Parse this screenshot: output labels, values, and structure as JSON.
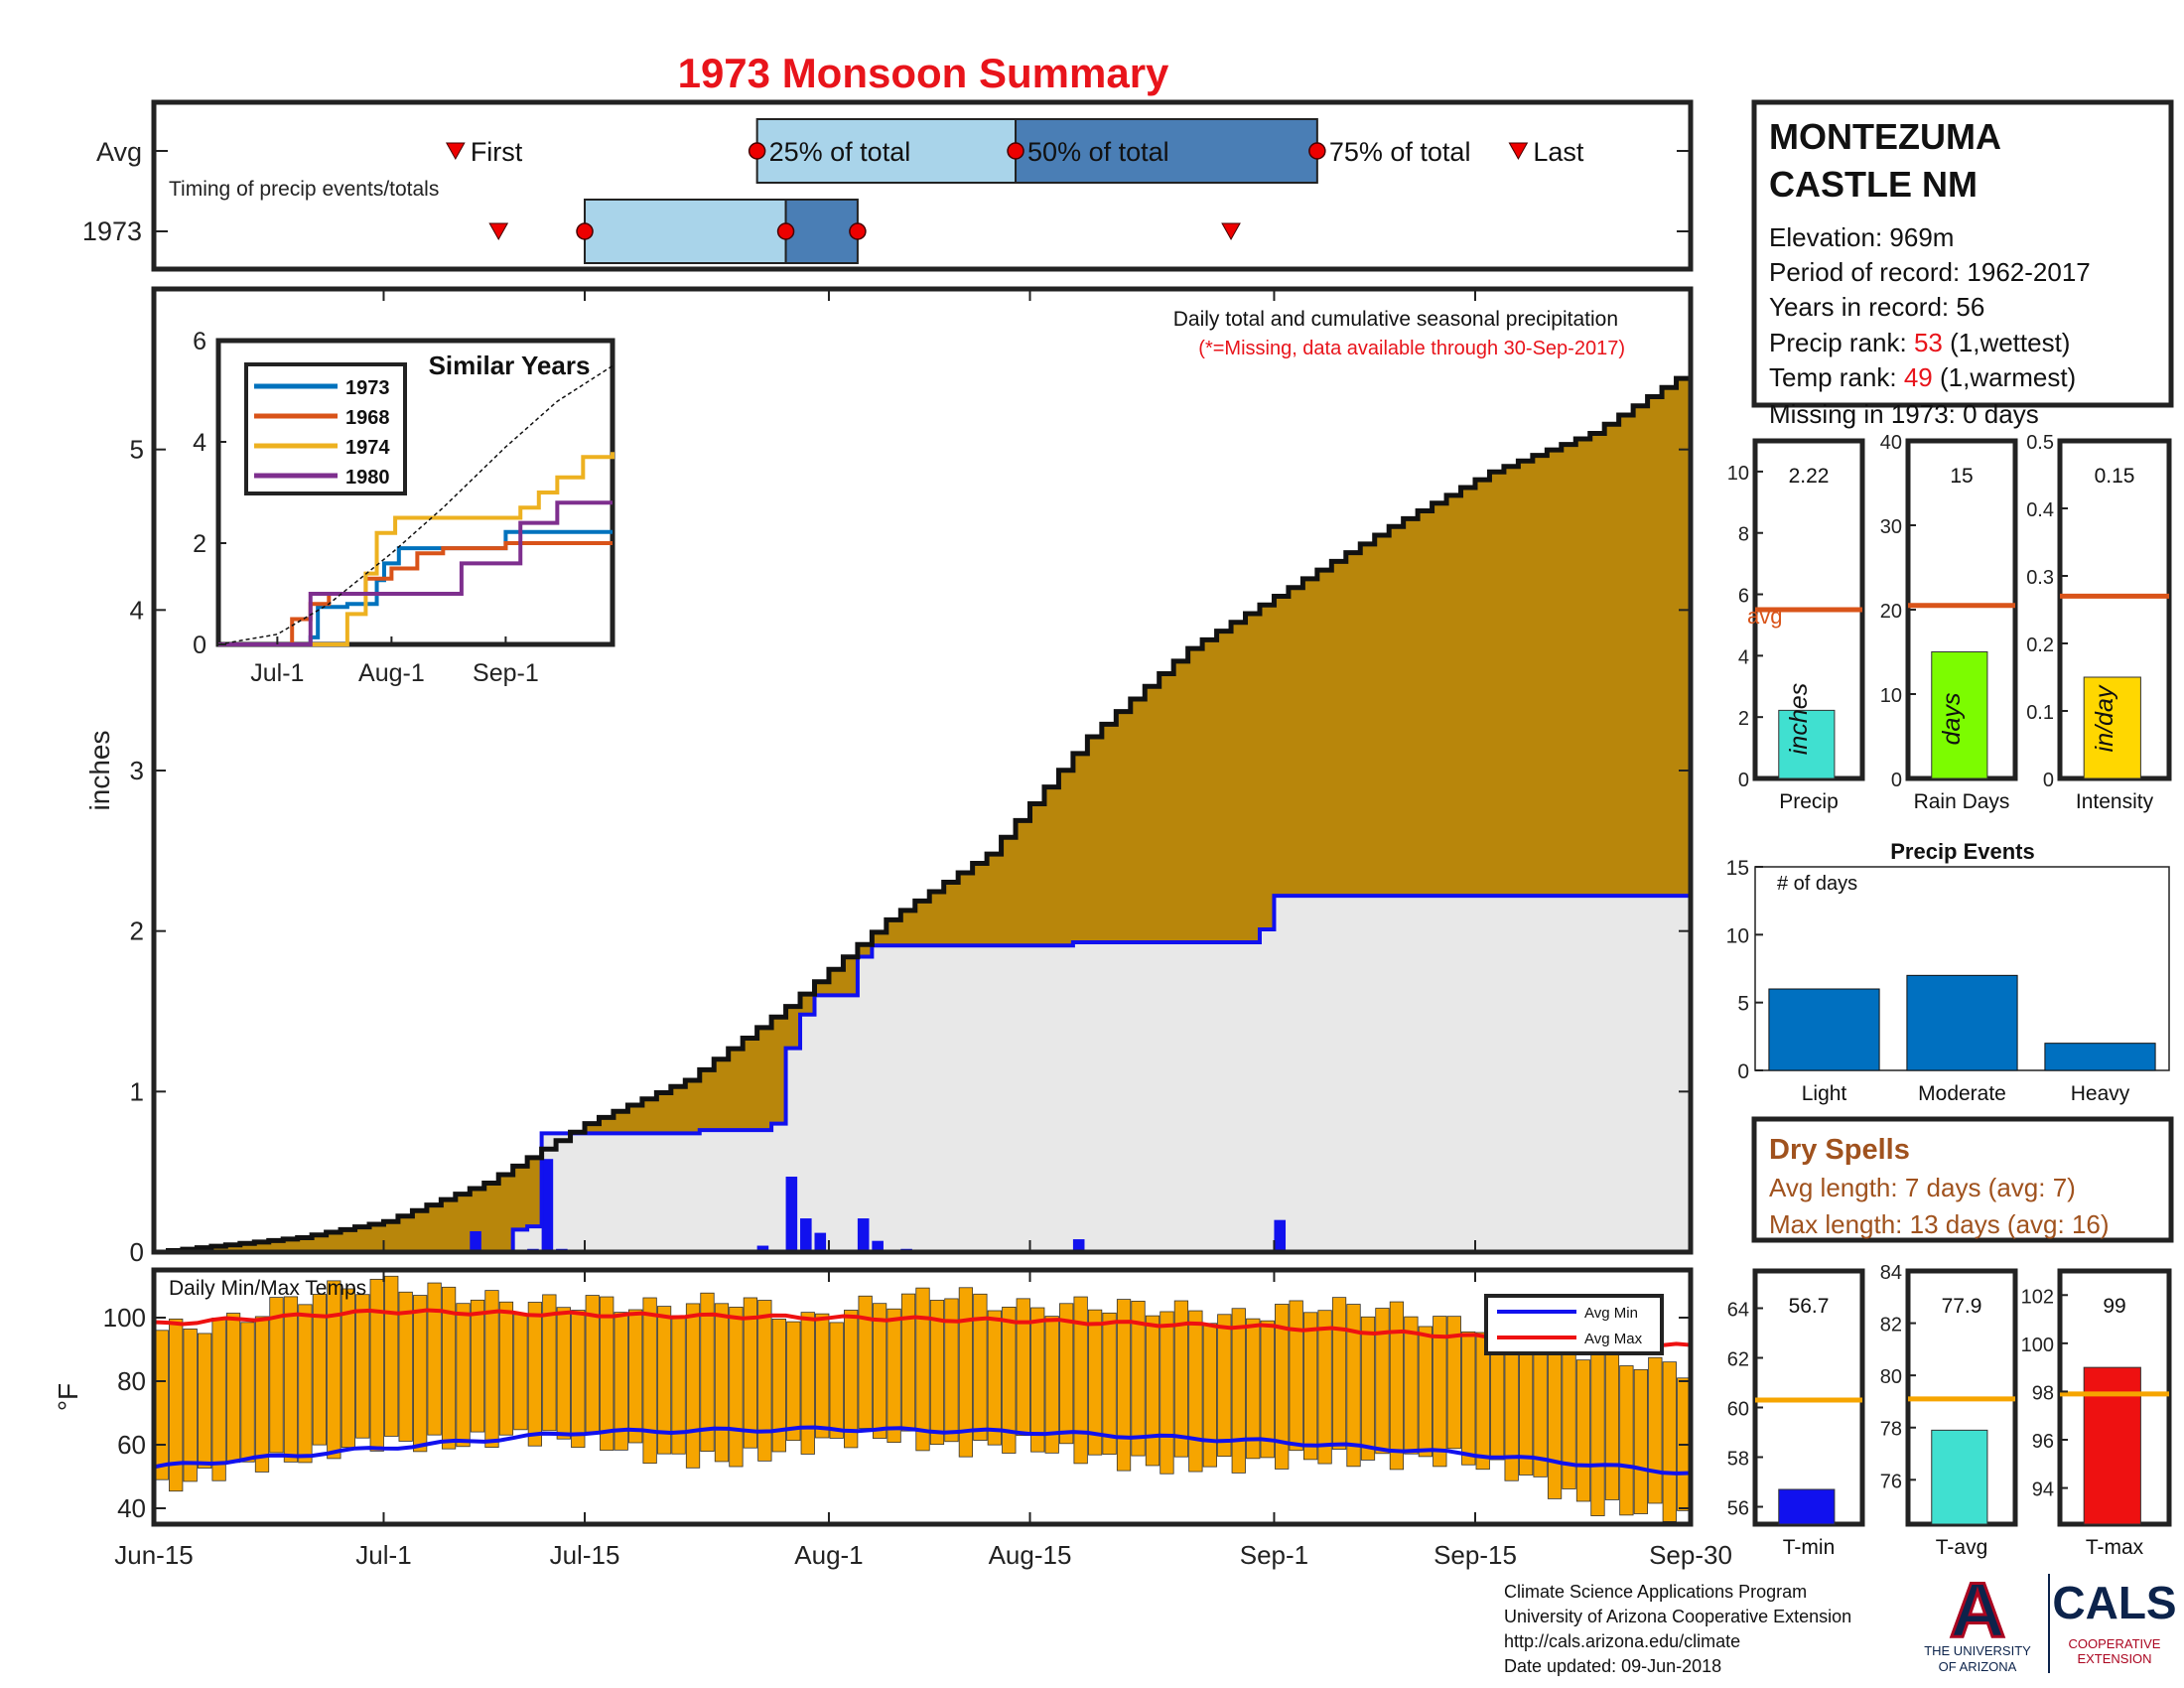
{
  "title": "1973 Monsoon Summary",
  "station": {
    "name_line1": "MONTEZUMA",
    "name_line2": "CASTLE NM",
    "elevation": "Elevation: 969m",
    "period": "Period of record: 1962-2017",
    "years": "Years in record: 56",
    "precip_rank_label": "Precip rank: ",
    "precip_rank_value": "53",
    "precip_rank_note": " (1,wettest)",
    "temp_rank_label": "Temp rank: ",
    "temp_rank_value": "49",
    "temp_rank_note": " (1,warmest)",
    "missing": "Missing in 1973: 0 days"
  },
  "timing": {
    "avg_label": "Avg",
    "year_label": "1973",
    "subtitle": "Timing of precip events/totals",
    "first_label": "First",
    "last_label": "Last",
    "q25_label": "25% of total",
    "q50_label": "50% of total",
    "q75_label": "75% of total",
    "avg": {
      "first": "2017-07-06",
      "q25": "2017-07-27",
      "q50": "2017-08-14",
      "q75": "2017-09-04",
      "last": "2017-09-18"
    },
    "year": {
      "first": "2017-07-09",
      "q25": "2017-07-15",
      "q50": "2017-07-29",
      "q75": "2017-08-03",
      "last": "2017-08-29"
    }
  },
  "colors": {
    "title": "#e8141b",
    "cumulative_fill": "#b8860b",
    "year_line": "#1111ee",
    "gray_fill": "#e8e8e8",
    "q_light": "#a9d4ea",
    "q_dark": "#4a7eb5",
    "avg_line": "#d9541a",
    "temp_bar": "#f6a500",
    "event_bar": "#0070c0"
  },
  "chart_data": [
    {
      "type": "area",
      "title": "Daily total and cumulative seasonal precipitation",
      "note": "(*=Missing, data available through 30-Sep-2017)",
      "ylabel": "inches",
      "ylim": [
        0,
        6
      ],
      "yticks": [
        0,
        1,
        2,
        3,
        4,
        5
      ],
      "xlim": [
        "2017-06-15",
        "2017-09-30"
      ],
      "xticks": [
        "Jun-15",
        "Jul-1",
        "Jul-15",
        "Aug-1",
        "Aug-15",
        "Sep-1",
        "Sep-15",
        "Sep-30"
      ],
      "series": [
        {
          "name": "Avg cumulative",
          "x": [
            "2017-06-15",
            "2017-06-25",
            "2017-07-01",
            "2017-07-08",
            "2017-07-15",
            "2017-07-22",
            "2017-07-29",
            "2017-08-05",
            "2017-08-12",
            "2017-08-19",
            "2017-08-26",
            "2017-09-02",
            "2017-09-09",
            "2017-09-16",
            "2017-09-23",
            "2017-09-30"
          ],
          "values": [
            0,
            0.09,
            0.19,
            0.43,
            0.8,
            1.07,
            1.53,
            2.07,
            2.48,
            3.21,
            3.76,
            4.14,
            4.52,
            4.86,
            5.1,
            5.5
          ]
        },
        {
          "name": "1973 cumulative",
          "x": [
            "2017-06-15",
            "2017-07-10",
            "2017-07-11",
            "2017-07-12",
            "2017-07-23",
            "2017-07-28",
            "2017-07-29",
            "2017-07-30",
            "2017-07-31",
            "2017-08-03",
            "2017-08-04",
            "2017-08-18",
            "2017-08-31",
            "2017-09-01",
            "2017-09-30"
          ],
          "values": [
            0,
            0.14,
            0.16,
            0.74,
            0.76,
            0.8,
            1.27,
            1.48,
            1.6,
            1.84,
            1.91,
            1.93,
            2.01,
            2.22,
            2.22
          ]
        },
        {
          "name": "1973 daily",
          "x": [
            "2017-07-07",
            "2017-07-11",
            "2017-07-12",
            "2017-07-13",
            "2017-07-27",
            "2017-07-29",
            "2017-07-30",
            "2017-07-31",
            "2017-08-03",
            "2017-08-04",
            "2017-08-06",
            "2017-08-18",
            "2017-09-01"
          ],
          "values": [
            0.13,
            0.02,
            0.58,
            0.02,
            0.04,
            0.47,
            0.21,
            0.12,
            0.21,
            0.07,
            0.02,
            0.08,
            0.2
          ]
        }
      ]
    },
    {
      "type": "line",
      "title": "Similar Years",
      "ylim": [
        0,
        6
      ],
      "yticks": [
        0,
        2,
        4,
        6
      ],
      "xticks": [
        "Jul-1",
        "Aug-1",
        "Sep-1"
      ],
      "xlim": [
        "2017-06-15",
        "2017-09-30"
      ],
      "series": [
        {
          "name": "1973",
          "color": "#0072bd",
          "x": [
            "2017-06-15",
            "2017-07-07",
            "2017-07-10",
            "2017-07-12",
            "2017-07-20",
            "2017-07-28",
            "2017-07-30",
            "2017-08-03",
            "2017-09-01",
            "2017-09-30"
          ],
          "values": [
            0,
            0,
            0.14,
            0.74,
            0.8,
            1.27,
            1.6,
            1.9,
            2.22,
            2.22
          ]
        },
        {
          "name": "1968",
          "color": "#d95319",
          "x": [
            "2017-06-15",
            "2017-07-01",
            "2017-07-05",
            "2017-07-10",
            "2017-07-15",
            "2017-07-25",
            "2017-08-01",
            "2017-08-08",
            "2017-08-15",
            "2017-09-01",
            "2017-09-30"
          ],
          "values": [
            0,
            0,
            0.5,
            0.8,
            1.0,
            1.3,
            1.5,
            1.8,
            1.9,
            2.0,
            2.0
          ]
        },
        {
          "name": "1974",
          "color": "#edb120",
          "x": [
            "2017-06-15",
            "2017-07-15",
            "2017-07-20",
            "2017-07-25",
            "2017-07-28",
            "2017-08-02",
            "2017-08-10",
            "2017-09-05",
            "2017-09-10",
            "2017-09-15",
            "2017-09-22",
            "2017-09-30"
          ],
          "values": [
            0,
            0,
            0.6,
            1.4,
            2.2,
            2.5,
            2.5,
            2.7,
            3.0,
            3.3,
            3.7,
            3.8
          ]
        },
        {
          "name": "1980",
          "color": "#7e2f8e",
          "x": [
            "2017-06-15",
            "2017-07-03",
            "2017-07-10",
            "2017-07-15",
            "2017-08-01",
            "2017-08-20",
            "2017-09-05",
            "2017-09-15",
            "2017-09-30"
          ],
          "values": [
            0,
            0,
            1.0,
            1.0,
            1.0,
            1.6,
            2.4,
            2.8,
            2.8
          ]
        },
        {
          "name": "Avg",
          "x": [
            "2017-06-15",
            "2017-07-01",
            "2017-07-15",
            "2017-08-01",
            "2017-08-15",
            "2017-09-01",
            "2017-09-15",
            "2017-09-30"
          ],
          "values": [
            0,
            0.2,
            0.8,
            1.8,
            2.7,
            3.9,
            4.8,
            5.5
          ]
        }
      ]
    },
    {
      "type": "bar",
      "title": "Daily Min/Max Temps",
      "ylabel": "°F",
      "ylim": [
        35,
        115
      ],
      "yticks": [
        40,
        60,
        80,
        100
      ],
      "legend": [
        "Avg Min",
        "Avg Max"
      ],
      "avg_min": {
        "x": [
          "2017-06-15",
          "2017-07-01",
          "2017-07-15",
          "2017-08-01",
          "2017-08-15",
          "2017-09-01",
          "2017-09-15",
          "2017-09-30"
        ],
        "values": [
          53,
          59,
          64,
          65,
          64,
          61,
          57,
          51
        ]
      },
      "avg_max": {
        "x": [
          "2017-06-15",
          "2017-07-01",
          "2017-07-15",
          "2017-08-01",
          "2017-08-15",
          "2017-09-01",
          "2017-09-15",
          "2017-09-30"
        ],
        "values": [
          98,
          102,
          101,
          100,
          99,
          97,
          94,
          91
        ]
      },
      "daily_max": {
        "x": [
          "2017-06-15",
          "2017-06-20",
          "2017-06-25",
          "2017-06-30",
          "2017-07-05",
          "2017-07-10",
          "2017-07-15",
          "2017-07-20",
          "2017-07-25",
          "2017-07-30",
          "2017-08-04",
          "2017-08-09",
          "2017-08-14",
          "2017-08-19",
          "2017-08-24",
          "2017-08-29",
          "2017-09-03",
          "2017-09-08",
          "2017-09-13",
          "2017-09-18",
          "2017-09-23",
          "2017-09-30"
        ],
        "values": [
          96,
          99,
          107,
          111,
          108,
          104,
          105,
          103,
          106,
          99,
          105,
          108,
          103,
          104,
          103,
          100,
          104,
          103,
          98,
          96,
          88,
          83
        ]
      },
      "daily_min": {
        "x": [
          "2017-06-15",
          "2017-06-20",
          "2017-06-25",
          "2017-06-30",
          "2017-07-05",
          "2017-07-10",
          "2017-07-15",
          "2017-07-20",
          "2017-07-25",
          "2017-07-30",
          "2017-08-04",
          "2017-08-09",
          "2017-08-14",
          "2017-08-19",
          "2017-08-24",
          "2017-08-29",
          "2017-09-03",
          "2017-09-08",
          "2017-09-13",
          "2017-09-18",
          "2017-09-23",
          "2017-09-30"
        ],
        "values": [
          46,
          53,
          56,
          61,
          60,
          63,
          61,
          56,
          55,
          60,
          63,
          59,
          60,
          56,
          53,
          54,
          56,
          55,
          56,
          50,
          40,
          38
        ]
      }
    },
    {
      "type": "bar",
      "title": "",
      "categories": [
        "Precip"
      ],
      "values": [
        2.22
      ],
      "value_label": "2.22",
      "unit_label": "inches",
      "avg": 5.5,
      "ylim": [
        0,
        11
      ],
      "yticks": [
        0,
        2,
        4,
        6,
        8,
        10
      ],
      "avg_label": "avg"
    },
    {
      "type": "bar",
      "title": "",
      "categories": [
        "Rain Days"
      ],
      "values": [
        15
      ],
      "value_label": "15",
      "unit_label": "days",
      "avg": 20.5,
      "ylim": [
        0,
        40
      ],
      "yticks": [
        0,
        10,
        20,
        30,
        40
      ]
    },
    {
      "type": "bar",
      "title": "",
      "categories": [
        "Intensity"
      ],
      "values": [
        0.15
      ],
      "value_label": "0.15",
      "unit_label": "in/day",
      "avg": 0.27,
      "ylim": [
        0,
        0.5
      ],
      "yticks": [
        0,
        0.1,
        0.2,
        0.3,
        0.4,
        0.5
      ]
    },
    {
      "type": "bar",
      "title": "Precip Events",
      "ylabel": "# of days",
      "categories": [
        "Light",
        "Moderate",
        "Heavy"
      ],
      "values": [
        6,
        7,
        2
      ],
      "ylim": [
        0,
        15
      ],
      "yticks": [
        0,
        5,
        10,
        15
      ]
    },
    {
      "type": "bar",
      "title": "",
      "categories": [
        "T-min"
      ],
      "values": [
        56.7
      ],
      "value_label": "56.7",
      "avg": 60.3,
      "ylim": [
        55.3,
        65.5
      ],
      "yticks": [
        56,
        58,
        60,
        62,
        64
      ]
    },
    {
      "type": "bar",
      "title": "",
      "categories": [
        "T-avg"
      ],
      "values": [
        77.9
      ],
      "value_label": "77.9",
      "avg": 79.1,
      "ylim": [
        74.3,
        84
      ],
      "yticks": [
        76,
        78,
        80,
        82,
        84
      ]
    },
    {
      "type": "bar",
      "title": "",
      "categories": [
        "T-max"
      ],
      "values": [
        99
      ],
      "value_label": "99",
      "avg": 97.9,
      "ylim": [
        92.5,
        103
      ],
      "yticks": [
        94,
        96,
        98,
        100,
        102
      ]
    }
  ],
  "dry_spells": {
    "title": "Dry Spells",
    "avg_length": "Avg length: 7 days (avg: 7)",
    "max_length": "Max length: 13 days (avg: 16)"
  },
  "footer": {
    "line1": "Climate Science Applications Program",
    "line2": "University of Arizona Cooperative Extension",
    "line3": "http://cals.arizona.edu/climate",
    "line4": " Date updated: 09-Jun-2018"
  },
  "logos": {
    "ua_letter": "A",
    "ua_line1": "THE UNIVERSITY",
    "ua_line2": "OF ARIZONA",
    "cals": "CALS",
    "cals_line1": "COOPERATIVE",
    "cals_line2": "EXTENSION"
  }
}
